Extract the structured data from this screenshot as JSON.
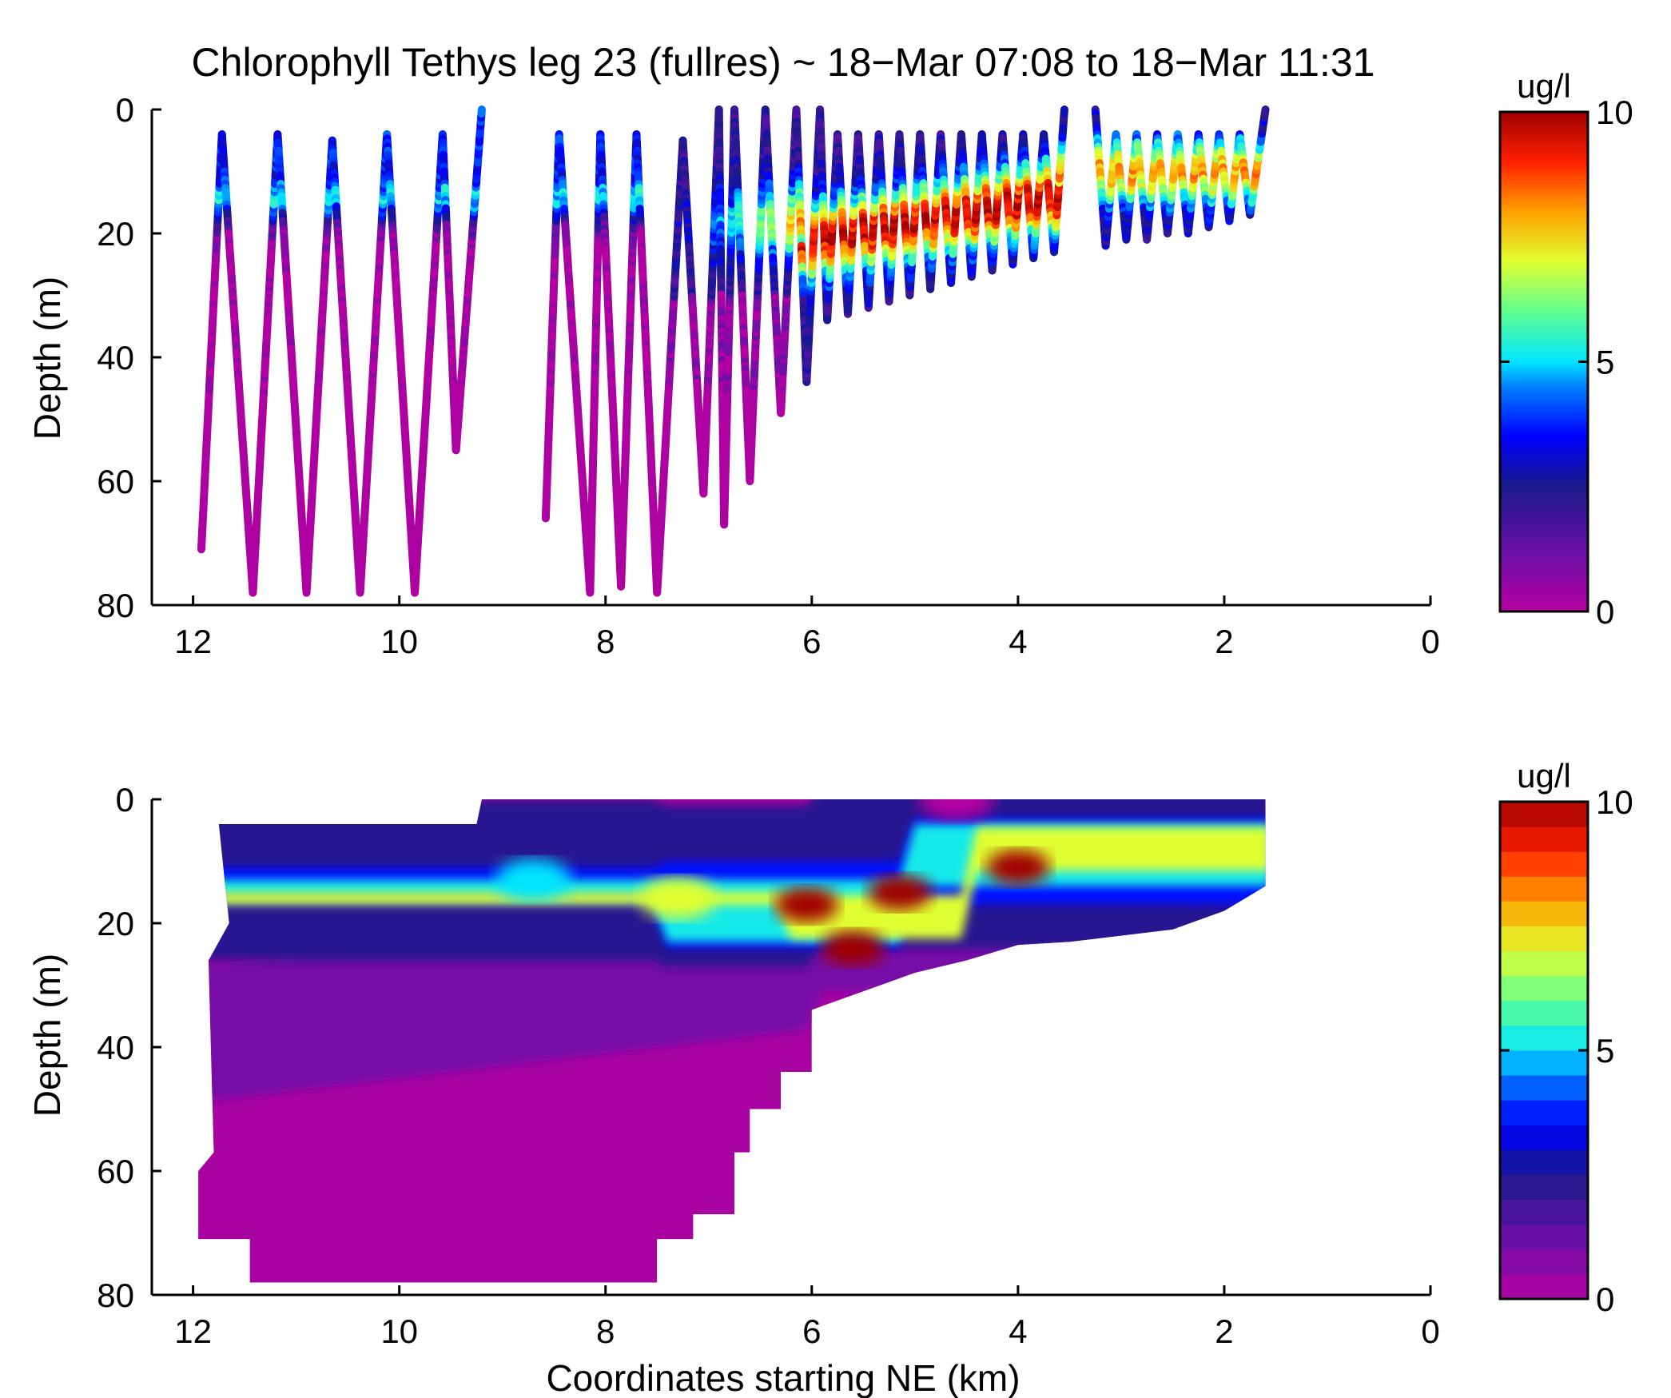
{
  "chart_data": [
    {
      "type": "scatter",
      "title": "Chlorophyll Tethys leg 23 (fullres) ~ 18−Mar 07:08 to 18−Mar 11:31",
      "xlabel": "",
      "ylabel": "Depth (m)",
      "xlim": [
        12.4,
        0
      ],
      "ylim": [
        0,
        80
      ],
      "xticks": [
        "12",
        "10",
        "8",
        "6",
        "4",
        "2",
        "0"
      ],
      "yticks": [
        "0",
        "20",
        "40",
        "60",
        "80"
      ],
      "colorbar": {
        "label": "ug/l",
        "min": 0,
        "max": 10,
        "ticks": [
          "10",
          "5",
          "0"
        ],
        "colormap": "jet-with-magenta-low"
      },
      "series": [
        {
          "segments": [
            [
              [
                11.92,
                71
              ],
              [
                11.72,
                4
              ],
              [
                11.42,
                78
              ],
              [
                11.18,
                4
              ],
              [
                10.9,
                78
              ],
              [
                10.65,
                5
              ],
              [
                10.38,
                78
              ],
              [
                10.12,
                4
              ],
              [
                9.85,
                78
              ],
              [
                9.58,
                4
              ],
              [
                9.45,
                55
              ],
              [
                9.2,
                0
              ]
            ],
            [
              [
                8.58,
                66
              ],
              [
                8.45,
                4
              ],
              [
                8.15,
                78
              ],
              [
                8.05,
                4
              ],
              [
                7.85,
                77
              ],
              [
                7.7,
                4
              ],
              [
                7.5,
                78
              ],
              [
                7.25,
                5
              ],
              [
                7.05,
                62
              ],
              [
                6.9,
                0
              ],
              [
                6.85,
                67
              ],
              [
                6.75,
                0
              ],
              [
                6.6,
                60
              ],
              [
                6.45,
                0
              ],
              [
                6.3,
                49
              ],
              [
                6.15,
                0
              ],
              [
                6.05,
                44
              ],
              [
                5.92,
                0
              ]
            ],
            [
              [
                5.92,
                0
              ],
              [
                5.85,
                34
              ],
              [
                5.75,
                4
              ],
              [
                5.65,
                33
              ],
              [
                5.55,
                4
              ],
              [
                5.45,
                32
              ],
              [
                5.35,
                4
              ],
              [
                5.25,
                31
              ],
              [
                5.15,
                4
              ],
              [
                5.05,
                30
              ],
              [
                4.95,
                4
              ],
              [
                4.85,
                29
              ],
              [
                4.75,
                4
              ],
              [
                4.65,
                28
              ],
              [
                4.55,
                4
              ],
              [
                4.45,
                27
              ],
              [
                4.35,
                4
              ],
              [
                4.25,
                26
              ],
              [
                4.15,
                4
              ],
              [
                4.05,
                25
              ],
              [
                3.95,
                4
              ],
              [
                3.85,
                24
              ],
              [
                3.75,
                4
              ],
              [
                3.65,
                23
              ],
              [
                3.55,
                0
              ]
            ],
            [
              [
                3.25,
                0
              ],
              [
                3.15,
                22
              ],
              [
                3.05,
                4
              ],
              [
                2.95,
                21
              ],
              [
                2.85,
                4
              ],
              [
                2.75,
                21
              ],
              [
                2.65,
                4
              ],
              [
                2.55,
                20
              ],
              [
                2.45,
                4
              ],
              [
                2.35,
                20
              ],
              [
                2.25,
                4
              ],
              [
                2.15,
                19
              ],
              [
                2.05,
                4
              ],
              [
                1.95,
                18
              ],
              [
                1.85,
                4
              ],
              [
                1.75,
                17
              ],
              [
                1.6,
                0
              ]
            ]
          ]
        }
      ]
    },
    {
      "type": "heatmap",
      "title": "",
      "xlabel": "Coordinates starting NE (km)",
      "ylabel": "Depth (m)",
      "xlim": [
        12.4,
        0
      ],
      "ylim": [
        0,
        80
      ],
      "xticks": [
        "12",
        "10",
        "8",
        "6",
        "4",
        "2",
        "0"
      ],
      "yticks": [
        "0",
        "20",
        "40",
        "60",
        "80"
      ],
      "colorbar": {
        "label": "ug/l",
        "min": 0,
        "max": 10,
        "ticks": [
          "10",
          "5",
          "0"
        ],
        "levels": 20,
        "colormap": "jet-with-magenta-low"
      },
      "data_extent": [
        [
          11.75,
          4
        ],
        [
          11.65,
          20
        ],
        [
          11.85,
          26
        ],
        [
          11.8,
          57
        ],
        [
          11.95,
          60
        ],
        [
          11.95,
          71
        ],
        [
          11.45,
          71
        ],
        [
          11.45,
          78
        ],
        [
          7.5,
          78
        ],
        [
          7.5,
          71
        ],
        [
          7.15,
          71
        ],
        [
          7.15,
          67
        ],
        [
          6.75,
          67
        ],
        [
          6.75,
          57
        ],
        [
          6.6,
          57
        ],
        [
          6.6,
          50
        ],
        [
          6.3,
          50
        ],
        [
          6.3,
          44
        ],
        [
          6.0,
          44
        ],
        [
          6.0,
          34
        ],
        [
          5.5,
          31
        ],
        [
          5.0,
          28
        ],
        [
          4.5,
          26
        ],
        [
          4.0,
          23.5
        ],
        [
          3.5,
          23
        ],
        [
          2.5,
          21
        ],
        [
          2.0,
          18
        ],
        [
          1.6,
          14
        ],
        [
          1.6,
          0
        ],
        [
          9.2,
          0
        ],
        [
          9.25,
          4
        ]
      ],
      "features": [
        {
          "x": 5.6,
          "depth": 24,
          "value": 10
        },
        {
          "x": 6.05,
          "depth": 17,
          "value": 10
        },
        {
          "x": 5.15,
          "depth": 15,
          "value": 10
        },
        {
          "x": 4.0,
          "depth": 11,
          "value": 10
        },
        {
          "x": 7.3,
          "depth": 16,
          "value": 7
        },
        {
          "x": 8.7,
          "depth": 13,
          "value": 5
        },
        {
          "x": 4.6,
          "depth": 0,
          "value": 0
        }
      ]
    }
  ]
}
